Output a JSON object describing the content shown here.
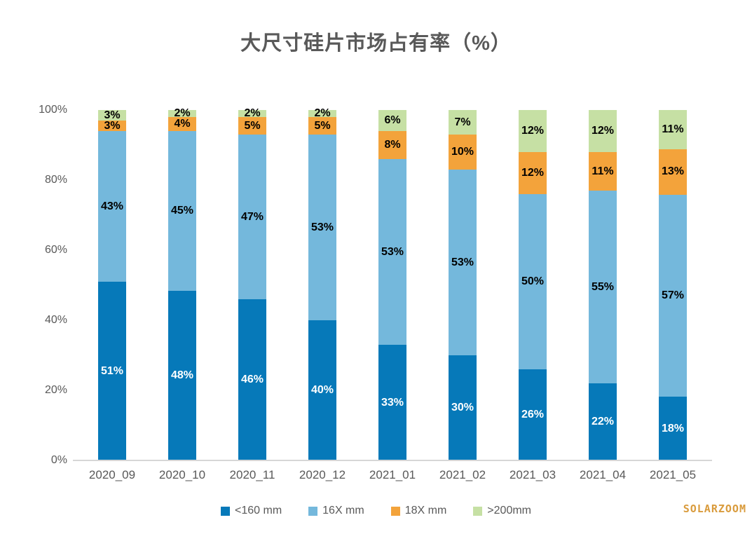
{
  "title": "大尺寸硅片市场占有率（%）",
  "watermark": "SOLARZOOM",
  "watermark_color": "#d99b3c",
  "text_color": "#595959",
  "axis_line_color": "#d6d6d6",
  "chart_data": {
    "type": "bar",
    "stacked": true,
    "percent": true,
    "title": "大尺寸硅片市场占有率（%）",
    "xlabel": "",
    "ylabel": "",
    "ylim": [
      0,
      100
    ],
    "grid": false,
    "legend_position": "bottom",
    "y_ticks": [
      "0%",
      "20%",
      "40%",
      "60%",
      "80%",
      "100%"
    ],
    "categories": [
      "2020_09",
      "2020_10",
      "2020_11",
      "2020_12",
      "2021_01",
      "2021_02",
      "2021_03",
      "2021_04",
      "2021_05"
    ],
    "series": [
      {
        "name": "<160 mm",
        "color": "#0679b9",
        "label_color": "#ffffff",
        "values": [
          51,
          48,
          46,
          40,
          33,
          30,
          26,
          22,
          18
        ]
      },
      {
        "name": "16X mm",
        "color": "#74b8dc",
        "label_color": "#000000",
        "values": [
          43,
          45,
          47,
          53,
          53,
          53,
          50,
          55,
          57
        ]
      },
      {
        "name": "18X mm",
        "color": "#f3a33b",
        "label_color": "#000000",
        "values": [
          3,
          4,
          5,
          5,
          8,
          10,
          12,
          11,
          13
        ]
      },
      {
        "name": ">200mm",
        "color": "#c6e0a4",
        "label_color": "#000000",
        "values": [
          3,
          2,
          2,
          2,
          6,
          7,
          12,
          12,
          11
        ]
      }
    ],
    "data_label_format": "{value}%"
  }
}
